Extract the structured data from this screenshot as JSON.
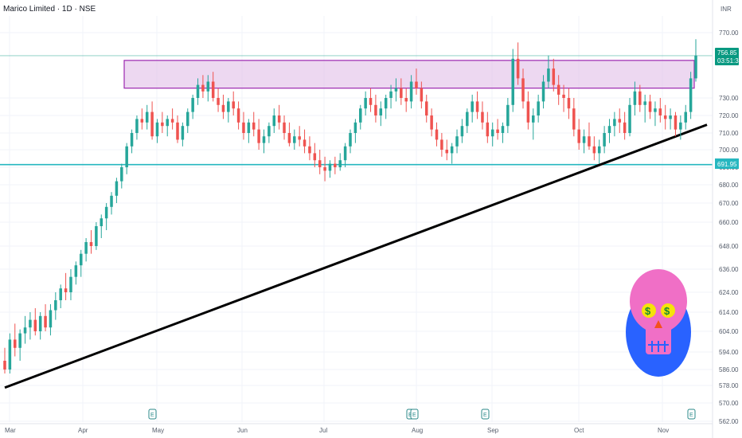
{
  "chart_data": {
    "type": "candlestick",
    "title": "Marico Limited · 1D · NSE",
    "currency": "INR",
    "y_ticks": [
      "770.00",
      "730.00",
      "720.00",
      "710.00",
      "700.00",
      "690.00",
      "680.00",
      "670.00",
      "660.00",
      "648.00",
      "636.00",
      "624.00",
      "614.00",
      "604.00",
      "594.00",
      "586.00",
      "578.00",
      "570.00",
      "562.00"
    ],
    "x_labels": [
      "Mar",
      "Apr",
      "May",
      "Jun",
      "Jul",
      "Aug",
      "Sep",
      "Oct",
      "Nov"
    ],
    "last_price": {
      "value": "756.85",
      "countdown": "03:51:30"
    },
    "support_line": {
      "value": "691.95"
    },
    "resistance_zone": {
      "low": 736,
      "high": 753
    },
    "trendline": {
      "from": {
        "date": "2024-03-01",
        "price": 577
      },
      "to": {
        "date": "2024-11-12",
        "price": 712
      }
    },
    "earnings_markers": [
      "May",
      "Aug",
      "Aug",
      "Sep",
      "Nov"
    ],
    "colors": {
      "up": "#26a69a",
      "down": "#ef5350",
      "zone_fill": "#e1bee7",
      "zone_border": "#9c27b0",
      "support": "#26b7c0",
      "trendline": "#000000",
      "tag_bg": "#089981"
    },
    "annotation_icon": "pink-skull-with-dollar-eyes-icon",
    "ohlc": [
      [
        590,
        596,
        584,
        586
      ],
      [
        586,
        603,
        584,
        600
      ],
      [
        600,
        608,
        592,
        596
      ],
      [
        596,
        605,
        590,
        603
      ],
      [
        603,
        612,
        598,
        606
      ],
      [
        606,
        614,
        600,
        610
      ],
      [
        610,
        616,
        602,
        604
      ],
      [
        604,
        614,
        600,
        612
      ],
      [
        612,
        618,
        604,
        606
      ],
      [
        606,
        618,
        602,
        615
      ],
      [
        615,
        624,
        610,
        620
      ],
      [
        620,
        628,
        616,
        626
      ],
      [
        626,
        634,
        620,
        624
      ],
      [
        624,
        636,
        620,
        632
      ],
      [
        632,
        640,
        628,
        638
      ],
      [
        638,
        646,
        632,
        644
      ],
      [
        644,
        652,
        640,
        650
      ],
      [
        650,
        656,
        644,
        648
      ],
      [
        648,
        660,
        646,
        658
      ],
      [
        658,
        664,
        652,
        662
      ],
      [
        662,
        670,
        656,
        668
      ],
      [
        668,
        676,
        664,
        674
      ],
      [
        674,
        684,
        670,
        682
      ],
      [
        682,
        692,
        678,
        690
      ],
      [
        690,
        704,
        686,
        702
      ],
      [
        702,
        712,
        698,
        710
      ],
      [
        710,
        720,
        706,
        718
      ],
      [
        718,
        724,
        712,
        716
      ],
      [
        716,
        726,
        712,
        722
      ],
      [
        722,
        728,
        706,
        708
      ],
      [
        708,
        718,
        704,
        716
      ],
      [
        716,
        722,
        710,
        714
      ],
      [
        714,
        720,
        708,
        718
      ],
      [
        718,
        724,
        712,
        716
      ],
      [
        716,
        720,
        704,
        706
      ],
      [
        706,
        716,
        702,
        714
      ],
      [
        714,
        724,
        710,
        722
      ],
      [
        722,
        732,
        718,
        730
      ],
      [
        730,
        742,
        726,
        738
      ],
      [
        738,
        744,
        730,
        734
      ],
      [
        734,
        744,
        728,
        740
      ],
      [
        740,
        746,
        728,
        730
      ],
      [
        730,
        736,
        722,
        726
      ],
      [
        726,
        732,
        718,
        722
      ],
      [
        722,
        730,
        716,
        728
      ],
      [
        728,
        734,
        720,
        724
      ],
      [
        724,
        728,
        712,
        716
      ],
      [
        716,
        722,
        706,
        710
      ],
      [
        710,
        718,
        704,
        716
      ],
      [
        716,
        722,
        708,
        712
      ],
      [
        712,
        718,
        700,
        704
      ],
      [
        704,
        712,
        698,
        708
      ],
      [
        708,
        716,
        704,
        714
      ],
      [
        714,
        724,
        710,
        720
      ],
      [
        720,
        726,
        712,
        716
      ],
      [
        716,
        720,
        706,
        710
      ],
      [
        710,
        716,
        702,
        704
      ],
      [
        704,
        712,
        700,
        708
      ],
      [
        708,
        714,
        702,
        706
      ],
      [
        706,
        712,
        698,
        702
      ],
      [
        702,
        708,
        694,
        698
      ],
      [
        698,
        704,
        690,
        694
      ],
      [
        694,
        700,
        686,
        690
      ],
      [
        690,
        696,
        682,
        688
      ],
      [
        688,
        694,
        684,
        692
      ],
      [
        692,
        696,
        686,
        690
      ],
      [
        690,
        698,
        688,
        694
      ],
      [
        694,
        704,
        690,
        702
      ],
      [
        702,
        712,
        698,
        710
      ],
      [
        710,
        718,
        704,
        716
      ],
      [
        716,
        726,
        712,
        724
      ],
      [
        724,
        734,
        720,
        730
      ],
      [
        730,
        736,
        722,
        726
      ],
      [
        726,
        732,
        716,
        720
      ],
      [
        720,
        728,
        714,
        724
      ],
      [
        724,
        732,
        718,
        730
      ],
      [
        730,
        738,
        724,
        734
      ],
      [
        734,
        742,
        728,
        736
      ],
      [
        736,
        742,
        726,
        730
      ],
      [
        730,
        736,
        722,
        728
      ],
      [
        728,
        744,
        724,
        740
      ],
      [
        740,
        748,
        732,
        736
      ],
      [
        736,
        740,
        724,
        728
      ],
      [
        728,
        732,
        716,
        720
      ],
      [
        720,
        724,
        708,
        712
      ],
      [
        712,
        716,
        702,
        706
      ],
      [
        706,
        710,
        696,
        700
      ],
      [
        700,
        706,
        694,
        698
      ],
      [
        698,
        704,
        692,
        702
      ],
      [
        702,
        712,
        698,
        708
      ],
      [
        708,
        718,
        704,
        714
      ],
      [
        714,
        724,
        710,
        722
      ],
      [
        722,
        732,
        716,
        728
      ],
      [
        728,
        734,
        718,
        722
      ],
      [
        722,
        728,
        712,
        716
      ],
      [
        716,
        722,
        704,
        708
      ],
      [
        708,
        716,
        702,
        712
      ],
      [
        712,
        718,
        706,
        710
      ],
      [
        710,
        716,
        704,
        714
      ],
      [
        714,
        730,
        710,
        726
      ],
      [
        726,
        760,
        722,
        754
      ],
      [
        754,
        764,
        738,
        742
      ],
      [
        742,
        748,
        724,
        728
      ],
      [
        728,
        734,
        712,
        716
      ],
      [
        716,
        724,
        706,
        720
      ],
      [
        720,
        732,
        716,
        728
      ],
      [
        728,
        744,
        724,
        740
      ],
      [
        740,
        756,
        736,
        748
      ],
      [
        748,
        754,
        734,
        738
      ],
      [
        738,
        744,
        726,
        732
      ],
      [
        732,
        738,
        722,
        730
      ],
      [
        730,
        736,
        718,
        724
      ],
      [
        724,
        730,
        708,
        712
      ],
      [
        712,
        718,
        700,
        704
      ],
      [
        704,
        712,
        698,
        708
      ],
      [
        708,
        716,
        700,
        702
      ],
      [
        702,
        708,
        694,
        698
      ],
      [
        698,
        706,
        692,
        702
      ],
      [
        702,
        714,
        698,
        710
      ],
      [
        710,
        718,
        704,
        714
      ],
      [
        714,
        722,
        708,
        718
      ],
      [
        718,
        724,
        710,
        716
      ],
      [
        716,
        722,
        706,
        710
      ],
      [
        710,
        730,
        708,
        726
      ],
      [
        726,
        740,
        720,
        734
      ],
      [
        734,
        738,
        722,
        726
      ],
      [
        726,
        732,
        716,
        728
      ],
      [
        728,
        732,
        718,
        722
      ],
      [
        722,
        728,
        714,
        724
      ],
      [
        724,
        730,
        716,
        720
      ],
      [
        720,
        726,
        712,
        718
      ],
      [
        718,
        724,
        712,
        720
      ],
      [
        720,
        722,
        708,
        712
      ],
      [
        712,
        720,
        706,
        716
      ],
      [
        716,
        726,
        712,
        722
      ],
      [
        722,
        746,
        718,
        742
      ],
      [
        742,
        766,
        740,
        756
      ]
    ]
  }
}
